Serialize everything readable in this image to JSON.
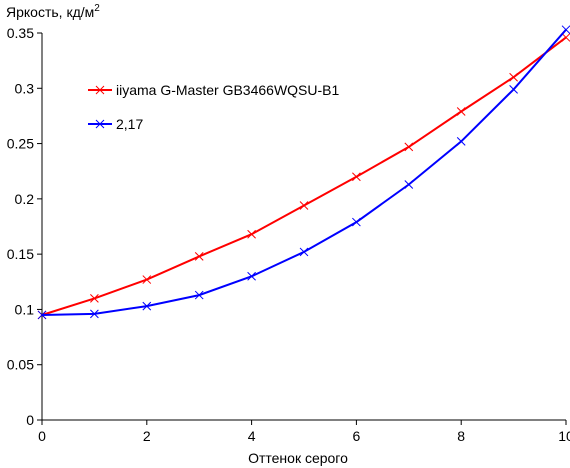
{
  "chart_data": {
    "type": "line",
    "title": "",
    "ylabel": "Яркость, кд/м",
    "ylabel_sup": "2",
    "xlabel": "Оттенок серого",
    "xlim": [
      0,
      10
    ],
    "ylim": [
      0,
      0.35
    ],
    "x_ticks": [
      "0",
      "2",
      "4",
      "6",
      "8",
      "10"
    ],
    "y_ticks": [
      "0",
      "0.05",
      "0.1",
      "0.15",
      "0.2",
      "0.25",
      "0.3",
      "0.35"
    ],
    "grid": false,
    "legend_position": "upper-left",
    "x": [
      0,
      1,
      2,
      3,
      4,
      5,
      6,
      7,
      8,
      9,
      10
    ],
    "series": [
      {
        "name": "iiyama G-Master GB3466WQSU-B1",
        "color": "#ff0000",
        "marker": "x",
        "values": [
          0.095,
          0.11,
          0.127,
          0.148,
          0.168,
          0.194,
          0.22,
          0.247,
          0.279,
          0.31,
          0.346
        ]
      },
      {
        "name": "2,17",
        "color": "#0000ff",
        "marker": "x",
        "values": [
          0.095,
          0.096,
          0.103,
          0.113,
          0.13,
          0.152,
          0.179,
          0.213,
          0.252,
          0.299,
          0.353
        ]
      }
    ]
  }
}
